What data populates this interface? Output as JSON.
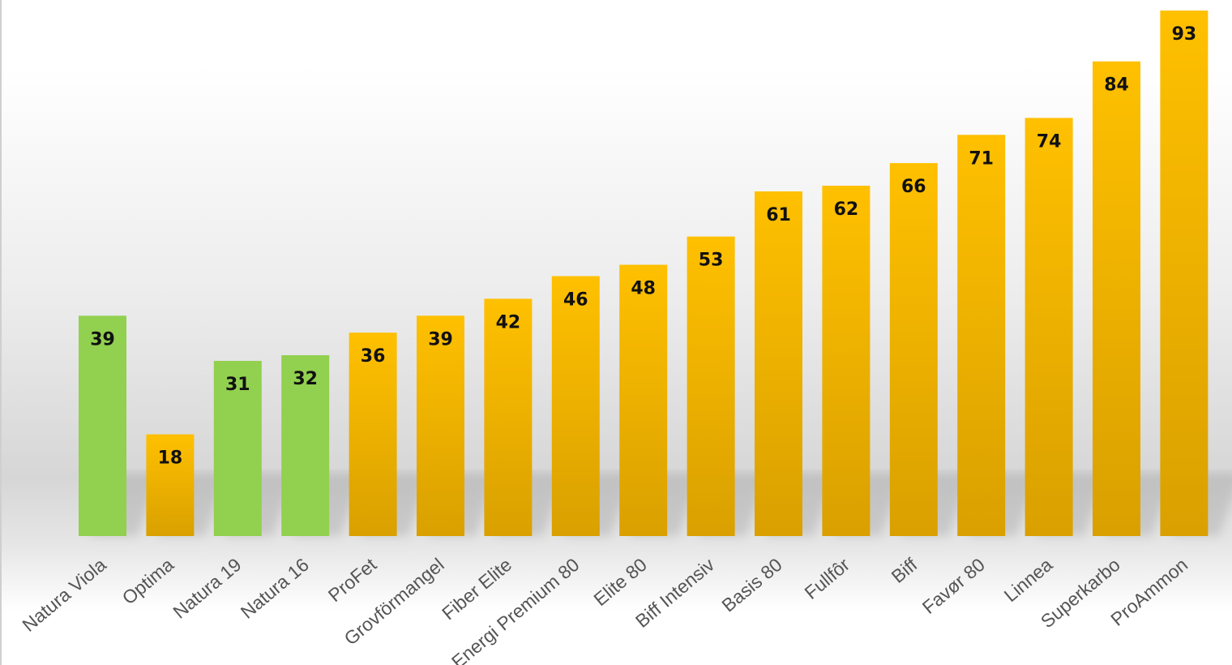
{
  "chart_data": {
    "type": "bar",
    "categories": [
      "Natura Viola",
      "Optima",
      "Natura 19",
      "Natura 16",
      "ProFet",
      "Grovförmangel",
      "Fiber Elite",
      "Energi Premium 80",
      "Elite 80",
      "Biff Intensiv",
      "Basis 80",
      "Fullfôr",
      "Biff",
      "Favør 80",
      "Linnea",
      "Superkarbo",
      "ProAmmon"
    ],
    "values": [
      39,
      18,
      31,
      32,
      36,
      39,
      42,
      46,
      48,
      53,
      61,
      62,
      66,
      71,
      74,
      84,
      93
    ],
    "bar_colors": [
      "green",
      "orange",
      "green",
      "green",
      "orange",
      "orange",
      "orange",
      "orange",
      "orange",
      "orange",
      "orange",
      "orange",
      "orange",
      "orange",
      "orange",
      "orange",
      "orange"
    ],
    "colors": {
      "green": "#92d050",
      "orange_top": "#ffc000",
      "orange_bottom": "#d9a000",
      "label": "#111111",
      "category_text": "#555555"
    },
    "ylim": [
      0,
      95
    ],
    "grid": false,
    "legend": "none",
    "data_labels": true
  }
}
